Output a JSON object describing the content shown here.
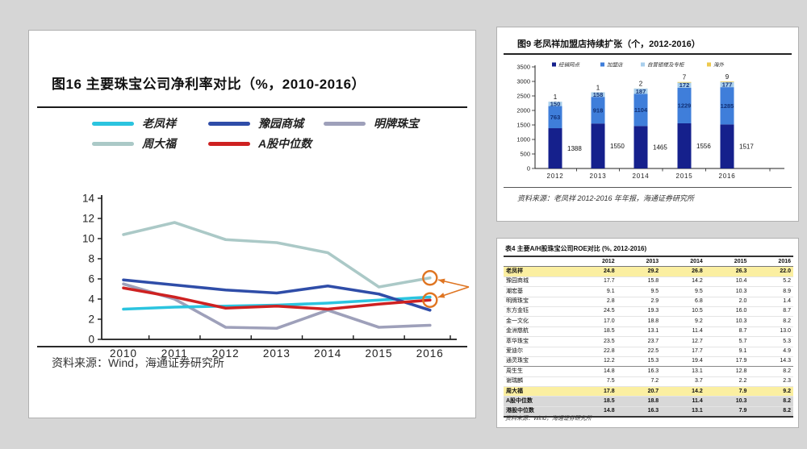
{
  "canvas": {
    "bg": "#d6d6d6",
    "panel_border": "#b0b0b0"
  },
  "left_panel": {
    "title": "图16 主要珠宝公司净利率对比（%，2010-2016）",
    "source": "资料来源：Wind，海通证券研究所"
  },
  "top_right_panel": {
    "title": "图9  老凤祥加盟店持续扩张（个，2012-2016）",
    "source": "资料来源：老凤祥 2012-2016 年年报，海通证券研究所"
  },
  "bottom_right_panel": {
    "title": "表4 主要A/H股珠宝公司ROE对比 (%, 2012-2016)",
    "source": "资料来源：Wind，海通证券研究所"
  },
  "chart_data": [
    {
      "type": "line",
      "title": "图16 主要珠宝公司净利率对比（%，2010-2016）",
      "x": [
        2010,
        2011,
        2012,
        2013,
        2014,
        2015,
        2016
      ],
      "xlabel": "",
      "ylabel": "",
      "ylim": [
        0,
        14
      ],
      "yticks": [
        0,
        2,
        4,
        6,
        8,
        10,
        12,
        14
      ],
      "grid": false,
      "legend_position": "top",
      "legend_rows": [
        [
          "老凤祥",
          "豫园商城",
          "明牌珠宝"
        ],
        [
          "周大福",
          "A股中位数"
        ]
      ],
      "draw_order": [
        "周大福",
        "明牌珠宝",
        "老凤祥",
        "豫园商城",
        "A股中位数"
      ],
      "series": [
        {
          "name": "老凤祥",
          "color": "#2BC4DF",
          "values": [
            3.0,
            3.2,
            3.3,
            3.4,
            3.6,
            3.9,
            4.2
          ]
        },
        {
          "name": "豫园商城",
          "color": "#2F4DA8",
          "values": [
            5.9,
            5.4,
            4.9,
            4.6,
            5.3,
            4.5,
            2.9
          ]
        },
        {
          "name": "明牌珠宝",
          "color": "#9EA0BA",
          "values": [
            5.5,
            4.0,
            1.2,
            1.1,
            2.9,
            1.2,
            1.4
          ]
        },
        {
          "name": "周大福",
          "color": "#ABC9C7",
          "values": [
            10.4,
            11.6,
            9.9,
            9.6,
            8.6,
            5.2,
            6.1
          ]
        },
        {
          "name": "A股中位数",
          "color": "#CE2121",
          "values": [
            5.1,
            4.2,
            3.1,
            3.3,
            3.0,
            3.5,
            3.9
          ]
        }
      ],
      "annotations": {
        "color": "#DF7522",
        "circled": [
          {
            "series": "周大福",
            "x": 2016,
            "value": 6.1
          },
          {
            "series": "A股中位数",
            "x": 2016,
            "value": 3.9
          }
        ]
      }
    },
    {
      "type": "bar",
      "stacked": true,
      "title": "图9 老凤祥加盟店持续扩张（个，2012-2016）",
      "categories": [
        2012,
        2013,
        2014,
        2015,
        2016
      ],
      "ylim": [
        0,
        3500
      ],
      "ytick_step": 500,
      "legend_position": "top",
      "series": [
        {
          "name": "经销网点",
          "color": "#15208C",
          "label_color": "#111111",
          "label_mode": "outside-right",
          "values": [
            1388,
            1550,
            1465,
            1556,
            1517
          ]
        },
        {
          "name": "加盟店",
          "color": "#3F7EDA",
          "label_color": "#123176",
          "label_mode": "inside",
          "values": [
            763,
            918,
            1104,
            1229,
            1285
          ]
        },
        {
          "name": "自营银楼及专柜",
          "color": "#A9CFEC",
          "label_color": "#123176",
          "label_mode": "inside",
          "values": [
            150,
            158,
            187,
            172,
            177
          ]
        },
        {
          "name": "海外",
          "color": "#EDC94E",
          "label_color": "#111111",
          "label_mode": "above",
          "values": [
            1,
            1,
            2,
            7,
            9
          ]
        }
      ]
    },
    {
      "type": "table",
      "title": "表4 主要A/H股珠宝公司ROE对比 (%, 2012-2016)",
      "columns": [
        "",
        "2012",
        "2013",
        "2014",
        "2015",
        "2016"
      ],
      "highlight_color": "#FBEFA1",
      "median_color": "#D8D8D8",
      "rows": [
        {
          "name": "老凤祥",
          "values": [
            "24.8",
            "29.2",
            "26.8",
            "26.3",
            "22.0"
          ],
          "style": "highlight"
        },
        {
          "name": "豫园商城",
          "values": [
            "17.7",
            "15.8",
            "14.2",
            "10.4",
            "5.2"
          ],
          "style": ""
        },
        {
          "name": "潮宏基",
          "values": [
            "9.1",
            "9.5",
            "9.5",
            "10.3",
            "8.9"
          ],
          "style": ""
        },
        {
          "name": "明牌珠宝",
          "values": [
            "2.8",
            "2.9",
            "6.8",
            "2.0",
            "1.4"
          ],
          "style": ""
        },
        {
          "name": "东方金钰",
          "values": [
            "24.5",
            "19.3",
            "10.5",
            "16.0",
            "8.7"
          ],
          "style": ""
        },
        {
          "name": "金一文化",
          "values": [
            "17.0",
            "18.8",
            "9.2",
            "10.3",
            "8.2"
          ],
          "style": ""
        },
        {
          "name": "金洲慈航",
          "values": [
            "18.5",
            "13.1",
            "11.4",
            "8.7",
            "13.0"
          ],
          "style": ""
        },
        {
          "name": "萃华珠宝",
          "values": [
            "23.5",
            "23.7",
            "12.7",
            "5.7",
            "5.3"
          ],
          "style": ""
        },
        {
          "name": "爱迪尔",
          "values": [
            "22.8",
            "22.5",
            "17.7",
            "9.1",
            "4.9"
          ],
          "style": ""
        },
        {
          "name": "通灵珠宝",
          "values": [
            "12.2",
            "15.3",
            "19.4",
            "17.9",
            "14.3"
          ],
          "style": "sep"
        },
        {
          "name": "周生生",
          "values": [
            "14.8",
            "16.3",
            "13.1",
            "12.8",
            "8.2"
          ],
          "style": ""
        },
        {
          "name": "谢瑞麟",
          "values": [
            "7.5",
            "7.2",
            "3.7",
            "2.2",
            "2.3"
          ],
          "style": ""
        },
        {
          "name": "周大福",
          "values": [
            "17.8",
            "20.7",
            "14.2",
            "7.9",
            "9.2"
          ],
          "style": "highlight"
        },
        {
          "name": "A股中位数",
          "values": [
            "18.5",
            "18.8",
            "11.4",
            "10.3",
            "8.2"
          ],
          "style": "median median-top"
        },
        {
          "name": "港股中位数",
          "values": [
            "14.8",
            "16.3",
            "13.1",
            "7.9",
            "8.2"
          ],
          "style": "median last"
        }
      ]
    }
  ]
}
